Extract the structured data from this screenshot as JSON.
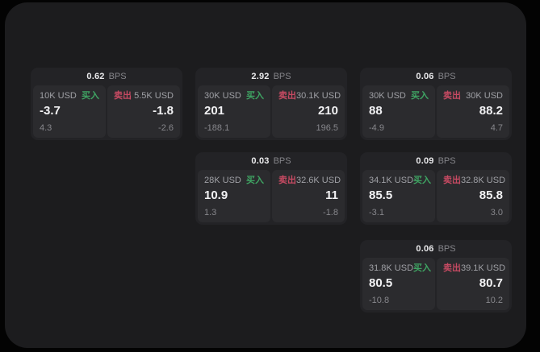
{
  "labels": {
    "bps": "BPS",
    "buy": "买入",
    "sell": "卖出"
  },
  "colors": {
    "buy_green": "#3fa463",
    "sell_red": "#c64a62",
    "panel_bg": "#1c1c1e",
    "card_bg": "#232326",
    "cell_bg": "#2b2b2e"
  },
  "cards": [
    {
      "spread": "0.62",
      "col": 1,
      "row": 1,
      "buy": {
        "amount": "10K USD",
        "price": "-3.7",
        "change": "4.3"
      },
      "sell": {
        "amount": "5.5K USD",
        "price": "-1.8",
        "change": "-2.6"
      }
    },
    {
      "spread": "2.92",
      "col": 2,
      "row": 1,
      "buy": {
        "amount": "30K USD",
        "price": "201",
        "change": "-188.1"
      },
      "sell": {
        "amount": "30.1K USD",
        "price": "210",
        "change": "196.5"
      }
    },
    {
      "spread": "0.06",
      "col": 3,
      "row": 1,
      "buy": {
        "amount": "30K USD",
        "price": "88",
        "change": "-4.9"
      },
      "sell": {
        "amount": "30K USD",
        "price": "88.2",
        "change": "4.7"
      }
    },
    {
      "spread": "0.03",
      "col": 2,
      "row": 2,
      "buy": {
        "amount": "28K USD",
        "price": "10.9",
        "change": "1.3"
      },
      "sell": {
        "amount": "32.6K USD",
        "price": "11",
        "change": "-1.8"
      }
    },
    {
      "spread": "0.09",
      "col": 3,
      "row": 2,
      "buy": {
        "amount": "34.1K USD",
        "price": "85.5",
        "change": "-3.1"
      },
      "sell": {
        "amount": "32.8K USD",
        "price": "85.8",
        "change": "3.0"
      }
    },
    {
      "spread": "0.06",
      "col": 3,
      "row": 3,
      "buy": {
        "amount": "31.8K USD",
        "price": "80.5",
        "change": "-10.8"
      },
      "sell": {
        "amount": "39.1K USD",
        "price": "80.7",
        "change": "10.2"
      }
    }
  ]
}
